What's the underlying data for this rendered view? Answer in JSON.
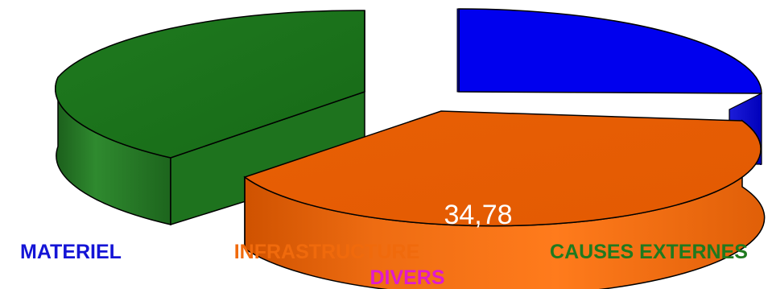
{
  "chart_data": {
    "type": "pie",
    "style": "3d-exploded",
    "slices": [
      {
        "label": "CAUSES EXTERNES",
        "color": "#0000ee",
        "label_color": "#1f7a1f"
      },
      {
        "label": "INFRASTRUCTURE",
        "value": 34.78,
        "value_text": "34,78",
        "color": "#f06a0c",
        "label_color": "#f06a0c"
      },
      {
        "label": "MATERIEL",
        "color": "#1a7a1a",
        "label_color": "#1414d6"
      },
      {
        "label": "DIVERS",
        "color": "#e01ad0",
        "label_color": "#e01ad0"
      }
    ],
    "legend": "none",
    "title": ""
  }
}
